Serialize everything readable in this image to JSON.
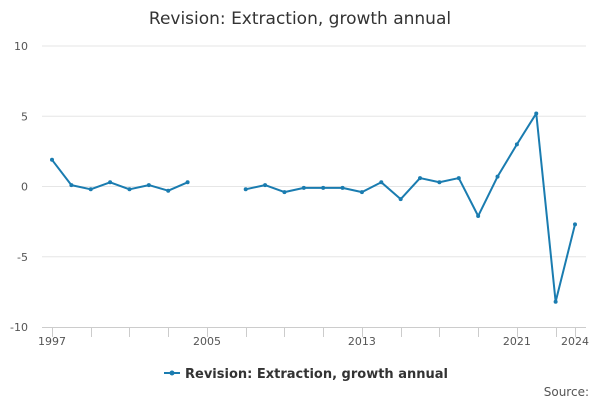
{
  "chart_data": {
    "type": "line",
    "title": "Revision: Extraction, growth annual",
    "xlabel": "",
    "ylabel": "",
    "x": [
      1997,
      1998,
      1999,
      2000,
      2001,
      2002,
      2003,
      2004,
      2005,
      2006,
      2007,
      2008,
      2009,
      2010,
      2011,
      2012,
      2013,
      2014,
      2015,
      2016,
      2017,
      2018,
      2019,
      2020,
      2021,
      2022,
      2023,
      2024
    ],
    "x_tick_labels": [
      "1997",
      "2005",
      "2013",
      "2021",
      "2024"
    ],
    "x_tick_values": [
      1997,
      2005,
      2013,
      2021,
      2024
    ],
    "xlim": [
      1997,
      2024
    ],
    "ylim": [
      -10,
      10
    ],
    "y_ticks": [
      10,
      5,
      0,
      -5,
      -10
    ],
    "y_tick_labels": [
      "10",
      "5",
      "0",
      "-5",
      "-10"
    ],
    "grid": true,
    "legend_position": "bottom",
    "series": [
      {
        "name": "Revision: Extraction, growth annual",
        "color": "#1a7cb0",
        "values": [
          1.9,
          0.1,
          -0.2,
          0.3,
          -0.2,
          0.1,
          -0.3,
          0.3,
          null,
          null,
          -0.2,
          0.1,
          -0.4,
          -0.1,
          -0.1,
          -0.1,
          -0.4,
          0.3,
          -0.9,
          0.6,
          0.3,
          0.6,
          -2.1,
          0.7,
          3.0,
          5.2,
          -8.2,
          -2.7
        ]
      }
    ],
    "source_label": "Source:"
  }
}
